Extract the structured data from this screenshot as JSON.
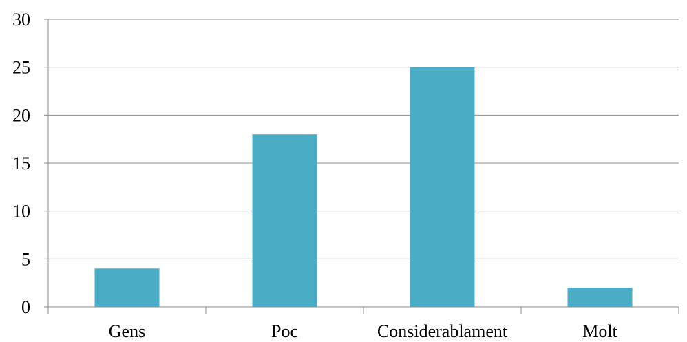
{
  "chart_data": {
    "type": "bar",
    "title": "",
    "xlabel": "",
    "ylabel": "",
    "categories": [
      "Gens",
      "Poc",
      "Considerablament",
      "Molt"
    ],
    "values": [
      4,
      18,
      25,
      2
    ],
    "ylim": [
      0,
      30
    ],
    "yticks": [
      0,
      5,
      10,
      15,
      20,
      25,
      30
    ],
    "ytick_labels": [
      "0",
      "5",
      "10",
      "15",
      "20",
      "25",
      "30"
    ],
    "grid": true,
    "legend": "none",
    "bar_color": "#4BACC6"
  }
}
